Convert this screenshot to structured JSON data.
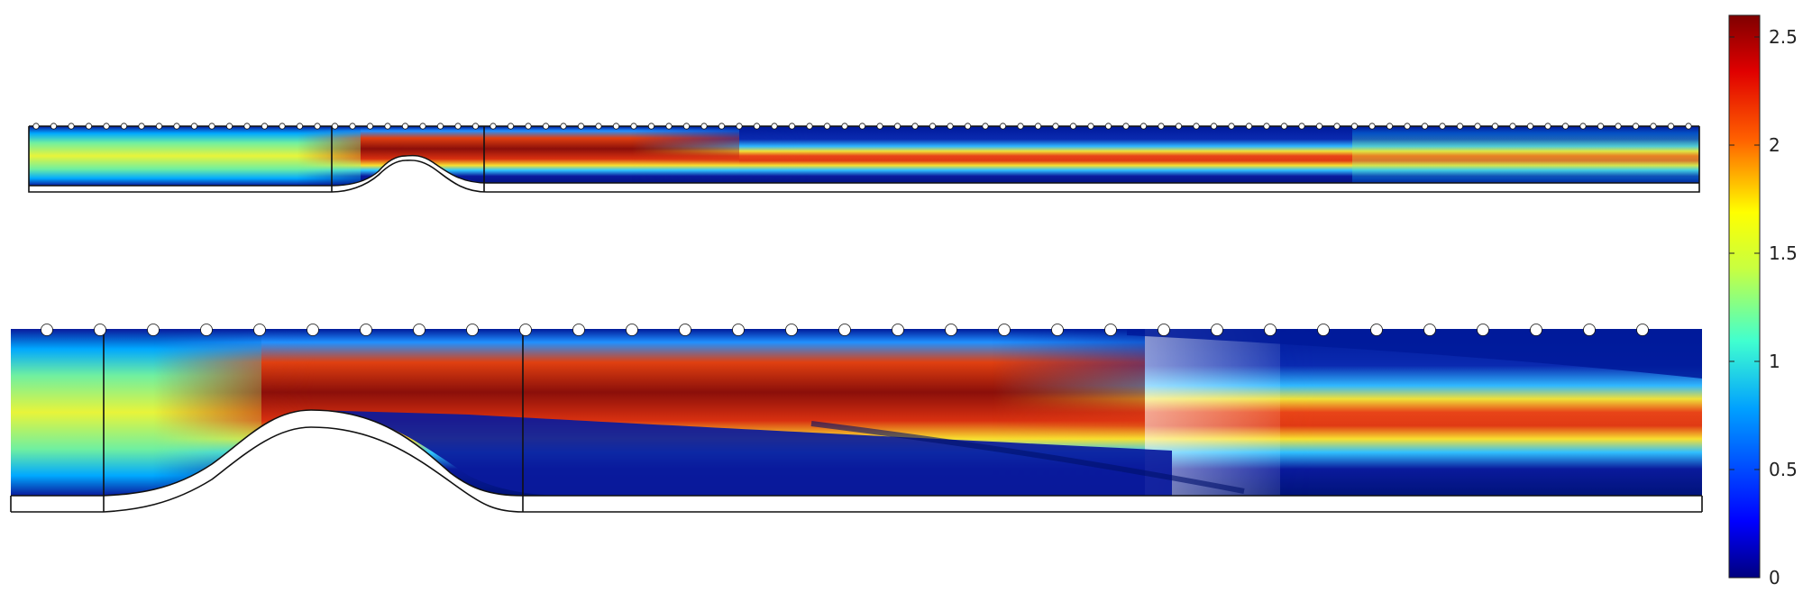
{
  "colorbar": {
    "ticks": [
      {
        "value": 0,
        "label": "0"
      },
      {
        "value": 0.5,
        "label": "0.5"
      },
      {
        "value": 1,
        "label": "1"
      },
      {
        "value": 1.5,
        "label": "1.5"
      },
      {
        "value": 2,
        "label": "2"
      },
      {
        "value": 2.5,
        "label": "2.5"
      }
    ],
    "range": [
      0,
      2.6
    ],
    "colormap": "jet",
    "colors": [
      "#00007f",
      "#0000ff",
      "#0080ff",
      "#00ffff",
      "#80ff80",
      "#ffff00",
      "#ff8000",
      "#ff0000",
      "#7f0000"
    ]
  },
  "panels": [
    {
      "name": "overview",
      "colors": {
        "core": "#e8401a",
        "peak": "#8b0f0a",
        "inlet": "#e6f03a",
        "wall": "#0a1a9c"
      }
    },
    {
      "name": "close-up",
      "colors": {
        "core": "#e8401a",
        "peak": "#8b0f0a",
        "inlet": "#e6f03a",
        "wall": "#0a1a9c"
      }
    }
  ]
}
